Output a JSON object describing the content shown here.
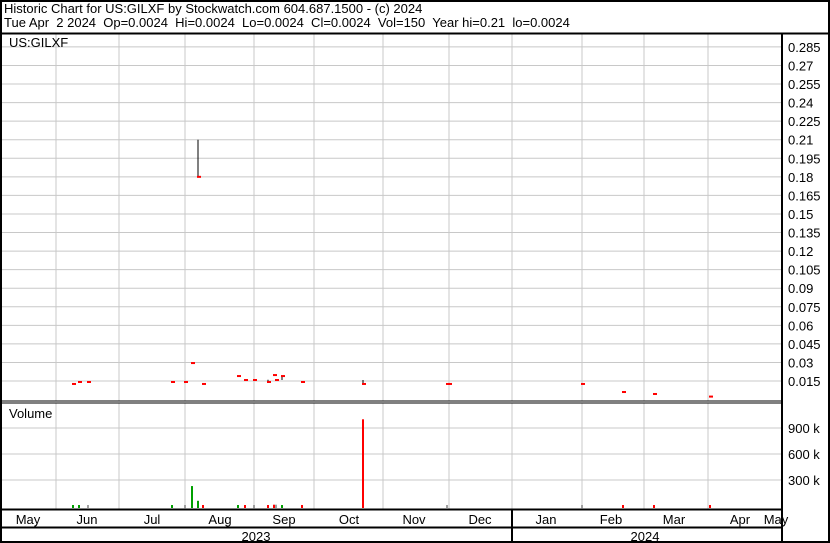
{
  "header": {
    "title": "Historic Chart for US:GILXF by Stockwatch.com 604.687.1500 - (c) 2024",
    "quote": "Tue Apr  2 2024  Op=0.0024  Hi=0.0024  Lo=0.0024  Cl=0.0024  Vol=150  Year hi=0.21  lo=0.0024"
  },
  "chart_data": [
    {
      "type": "ohlc",
      "symbol_label": "US:GILXF",
      "y_ticks": [
        "0.285",
        "0.27",
        "0.255",
        "0.24",
        "0.225",
        "0.21",
        "0.195",
        "0.18",
        "0.165",
        "0.15",
        "0.135",
        "0.12",
        "0.105",
        "0.09",
        "0.075",
        "0.06",
        "0.045",
        "0.03",
        "0.015"
      ],
      "ylim": [
        0,
        0.3
      ],
      "grid": true,
      "colors": {
        "down": "#ff0000",
        "up": "#00a000",
        "bar": "#000000"
      },
      "points": [
        {
          "date": "2023-06-09",
          "high": 0.0126,
          "low": 0.0126,
          "close": 0.0126
        },
        {
          "date": "2023-06-12",
          "high": 0.0142,
          "low": 0.0142,
          "close": 0.0142
        },
        {
          "date": "2023-06-16",
          "high": 0.0142,
          "low": 0.0142,
          "close": 0.0142
        },
        {
          "date": "2023-07-26",
          "high": 0.0142,
          "low": 0.0142,
          "close": 0.0142
        },
        {
          "date": "2023-08-01",
          "high": 0.0142,
          "low": 0.0142,
          "close": 0.0142
        },
        {
          "date": "2023-08-04",
          "high": 0.0295,
          "low": 0.0295,
          "close": 0.0295
        },
        {
          "date": "2023-08-07",
          "high": 0.21,
          "low": 0.18,
          "close": 0.18
        },
        {
          "date": "2023-08-09",
          "high": 0.0126,
          "low": 0.0126,
          "close": 0.0126
        },
        {
          "date": "2023-08-25",
          "high": 0.019,
          "low": 0.019,
          "close": 0.019
        },
        {
          "date": "2023-08-28",
          "high": 0.0158,
          "low": 0.0158,
          "close": 0.0158
        },
        {
          "date": "2023-09-01",
          "high": 0.0158,
          "low": 0.0158,
          "close": 0.0158
        },
        {
          "date": "2023-09-08",
          "high": 0.016,
          "low": 0.0142,
          "close": 0.0142
        },
        {
          "date": "2023-09-11",
          "high": 0.0198,
          "low": 0.0198,
          "close": 0.0198
        },
        {
          "date": "2023-09-12",
          "high": 0.0158,
          "low": 0.0158,
          "close": 0.0158
        },
        {
          "date": "2023-09-15",
          "high": 0.019,
          "low": 0.0158,
          "close": 0.019
        },
        {
          "date": "2023-09-25",
          "high": 0.0142,
          "low": 0.0142,
          "close": 0.0142
        },
        {
          "date": "2023-10-23",
          "high": 0.0158,
          "low": 0.0126,
          "close": 0.0126
        },
        {
          "date": "2023-11-30",
          "high": 0.0126,
          "low": 0.0126,
          "close": 0.0126
        },
        {
          "date": "2023-12-01",
          "high": 0.0126,
          "low": 0.0126,
          "close": 0.0126
        },
        {
          "date": "2024-02-01",
          "high": 0.0126,
          "low": 0.0126,
          "close": 0.0126
        },
        {
          "date": "2024-02-20",
          "high": 0.0061,
          "low": 0.0061,
          "close": 0.0061
        },
        {
          "date": "2024-03-06",
          "high": 0.0045,
          "low": 0.0045,
          "close": 0.0045
        },
        {
          "date": "2024-04-02",
          "high": 0.0024,
          "low": 0.0024,
          "close": 0.0024
        }
      ]
    },
    {
      "type": "bar",
      "title": "Volume",
      "y_ticks": [
        "900 k",
        "600 k",
        "300 k"
      ],
      "ylim": [
        0,
        1150000
      ],
      "bars": [
        {
          "date": "2023-06-09",
          "value": 8000,
          "color": "#00a000"
        },
        {
          "date": "2023-06-12",
          "value": 8000,
          "color": "#00a000"
        },
        {
          "date": "2023-06-16",
          "value": 5000,
          "color": "#a0a0a0"
        },
        {
          "date": "2023-07-26",
          "value": 8000,
          "color": "#00a000"
        },
        {
          "date": "2023-08-01",
          "value": 5000,
          "color": "#a0a0a0"
        },
        {
          "date": "2023-08-04",
          "value": 230000,
          "color": "#00a000"
        },
        {
          "date": "2023-08-07",
          "value": 60000,
          "color": "#00a000"
        },
        {
          "date": "2023-08-09",
          "value": 5000,
          "color": "#ff0000"
        },
        {
          "date": "2023-08-25",
          "value": 8000,
          "color": "#00a000"
        },
        {
          "date": "2023-08-28",
          "value": 8000,
          "color": "#ff0000"
        },
        {
          "date": "2023-09-01",
          "value": 5000,
          "color": "#a0a0a0"
        },
        {
          "date": "2023-09-08",
          "value": 8000,
          "color": "#ff0000"
        },
        {
          "date": "2023-09-11",
          "value": 15000,
          "color": "#ff0000"
        },
        {
          "date": "2023-09-12",
          "value": 15000,
          "color": "#a0a0a0"
        },
        {
          "date": "2023-09-15",
          "value": 8000,
          "color": "#00a000"
        },
        {
          "date": "2023-09-25",
          "value": 5000,
          "color": "#ff0000"
        },
        {
          "date": "2023-10-23",
          "value": 1000000,
          "color": "#ff0000"
        },
        {
          "date": "2023-11-30",
          "value": 5000,
          "color": "#a0a0a0"
        },
        {
          "date": "2024-02-01",
          "value": 3000,
          "color": "#a0a0a0"
        },
        {
          "date": "2024-02-20",
          "value": 3000,
          "color": "#ff0000"
        },
        {
          "date": "2024-03-06",
          "value": 3000,
          "color": "#ff0000"
        },
        {
          "date": "2024-04-02",
          "value": 150,
          "color": "#ff0000"
        }
      ]
    }
  ],
  "x_axis": {
    "months": [
      "May",
      "Jun",
      "Jul",
      "Aug",
      "Sep",
      "Oct",
      "Nov",
      "Dec",
      "Jan",
      "Feb",
      "Mar",
      "Apr",
      "May"
    ],
    "years": [
      "2023",
      "2024"
    ]
  }
}
